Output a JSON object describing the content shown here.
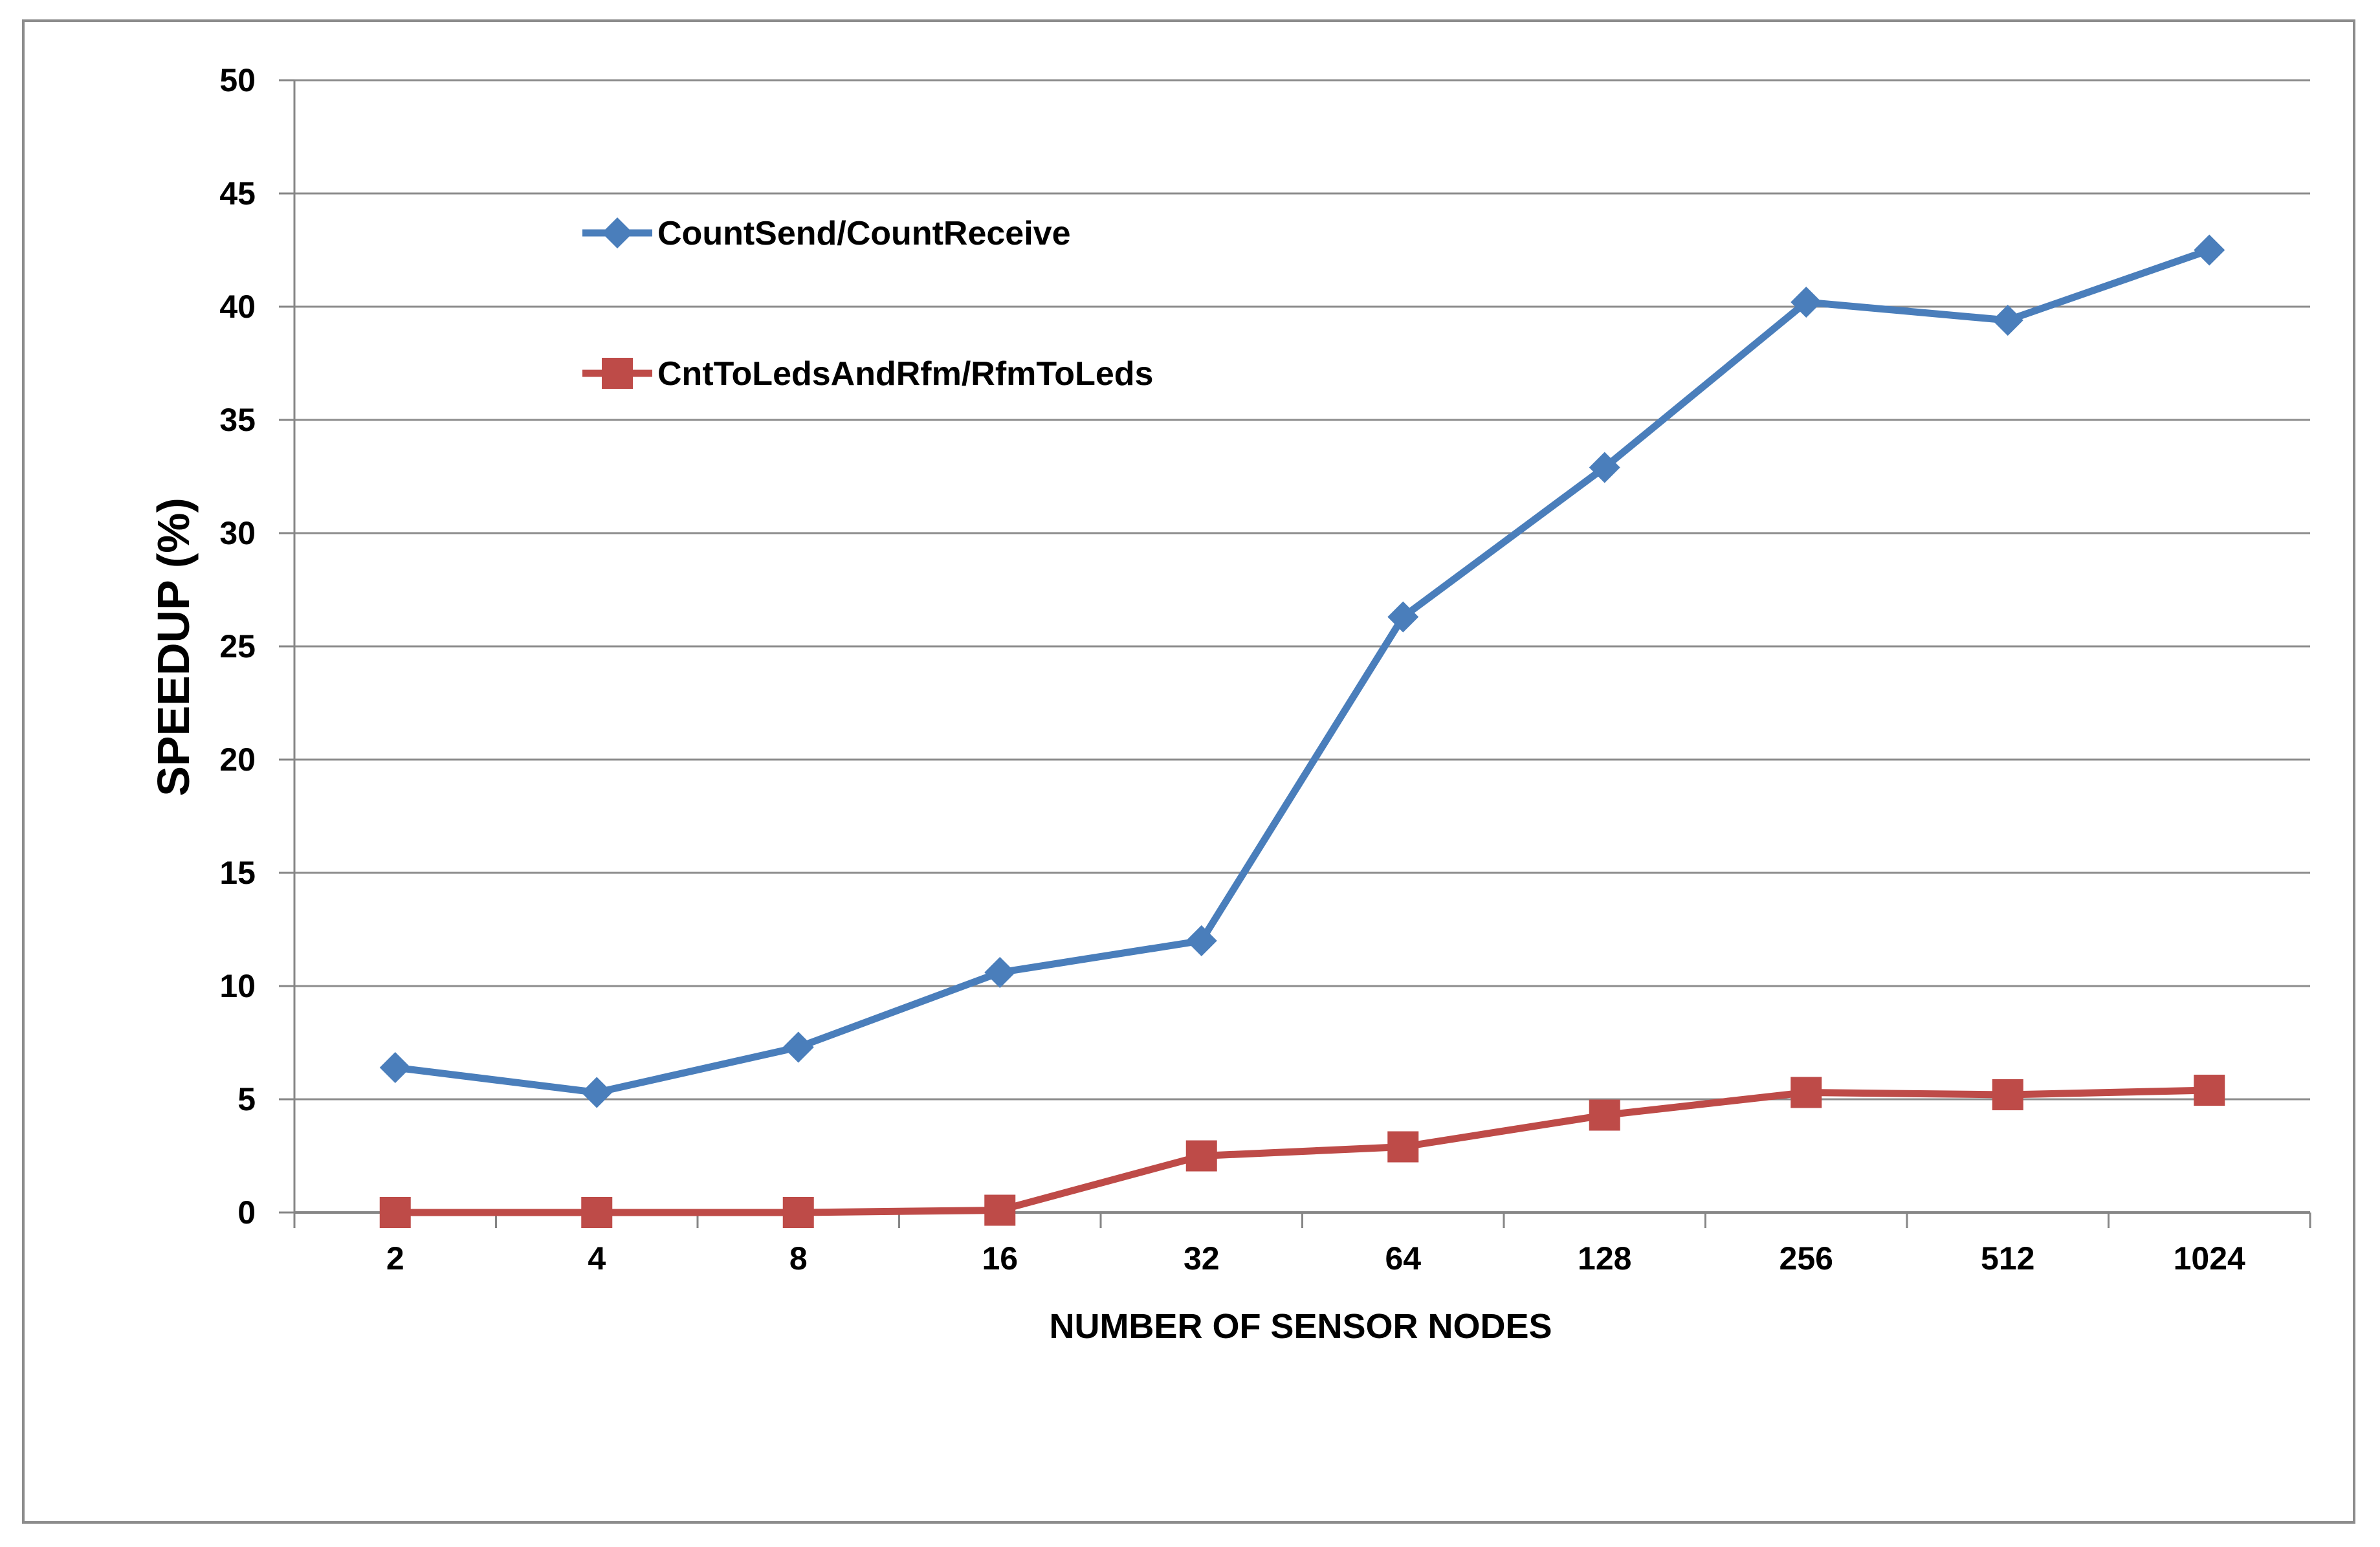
{
  "chart_data": {
    "type": "line",
    "categories": [
      "2",
      "4",
      "8",
      "16",
      "32",
      "64",
      "128",
      "256",
      "512",
      "1024"
    ],
    "series": [
      {
        "name": "CountSend/CountReceive",
        "color": "#4a7ebb",
        "marker": "diamond",
        "values": [
          6.4,
          5.3,
          7.3,
          10.6,
          12.0,
          26.3,
          32.9,
          40.2,
          39.4,
          42.5
        ]
      },
      {
        "name": "CntToLedsAndRfm/RfmToLeds",
        "color": "#be4b48",
        "marker": "square",
        "values": [
          0.0,
          0.0,
          0.0,
          0.1,
          2.5,
          2.9,
          4.3,
          5.3,
          5.2,
          5.4
        ]
      }
    ],
    "title": "",
    "xlabel": "NUMBER OF SENSOR NODES",
    "ylabel": "SPEEDUP (%)",
    "ylim": [
      0,
      50
    ],
    "yticks": [
      "0",
      "5",
      "10",
      "15",
      "20",
      "25",
      "30",
      "35",
      "40",
      "45",
      "50"
    ],
    "grid": "horizontal",
    "legend_position": "top-left"
  }
}
